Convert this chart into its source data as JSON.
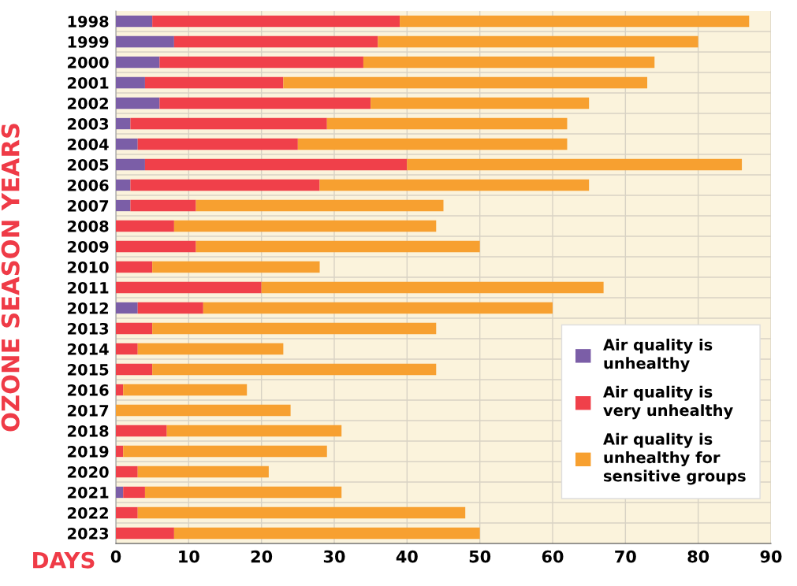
{
  "chart_data": {
    "type": "bar",
    "orientation": "horizontal",
    "stacked": true,
    "categories": [
      "1998",
      "1999",
      "2000",
      "2001",
      "2002",
      "2003",
      "2004",
      "2005",
      "2006",
      "2007",
      "2008",
      "2009",
      "2010",
      "2011",
      "2012",
      "2013",
      "2014",
      "2015",
      "2016",
      "2017",
      "2018",
      "2019",
      "2020",
      "2021",
      "2022",
      "2023"
    ],
    "series": [
      {
        "name": "Air quality is\nunhealthy",
        "color": "#7b5ea7",
        "values": [
          5,
          8,
          6,
          4,
          6,
          2,
          3,
          4,
          2,
          2,
          0,
          0,
          0,
          0,
          3,
          0,
          0,
          0,
          0,
          0,
          0,
          0,
          0,
          1,
          0,
          0
        ]
      },
      {
        "name": "Air quality is\nvery unhealthy",
        "color": "#f0404a",
        "values": [
          34,
          28,
          28,
          19,
          29,
          27,
          22,
          36,
          26,
          9,
          8,
          11,
          5,
          20,
          9,
          5,
          3,
          5,
          1,
          0,
          7,
          1,
          3,
          3,
          3,
          8
        ]
      },
      {
        "name": "Air quality is\nunhealthy for\nsensitive groups",
        "color": "#f7a030",
        "values": [
          48,
          44,
          40,
          50,
          30,
          33,
          37,
          46,
          37,
          34,
          36,
          39,
          23,
          47,
          48,
          39,
          20,
          39,
          17,
          24,
          24,
          28,
          18,
          27,
          45,
          42
        ]
      }
    ],
    "xlim": [
      0,
      90
    ],
    "xticks": [
      0,
      10,
      20,
      30,
      40,
      50,
      60,
      70,
      80,
      90
    ],
    "xlabel": "DAYS",
    "ylabel": "OZONE SEASON YEARS",
    "grid": true,
    "legend": "bottom right"
  }
}
